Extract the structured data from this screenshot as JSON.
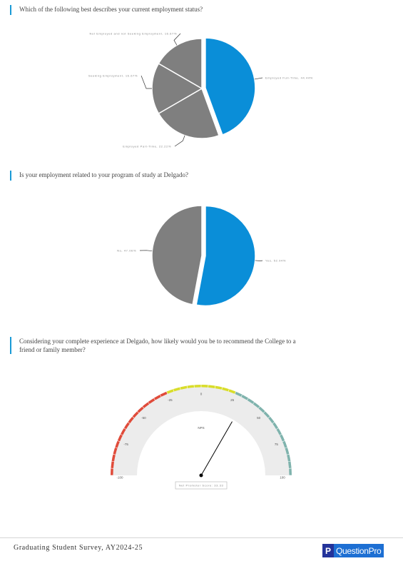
{
  "questions": [
    {
      "text": "Which of the following best describes your current employment status?"
    },
    {
      "text": "Is your employment related to your program of study at Delgado?"
    },
    {
      "text": "Considering your complete experience at Delgado, how likely would you be to recommend the College to a friend or family member?"
    }
  ],
  "colors": {
    "accent": "#0a8ed8",
    "grey": "#7f7f7f",
    "gauge_red": "#e04b3a",
    "gauge_yellow": "#d9dd2a",
    "gauge_teal": "#7fb3ad"
  },
  "chart_data": [
    {
      "type": "pie",
      "slices": [
        {
          "label": "Employed Full-Time, 44.44%",
          "value": 44.44,
          "color": "#0a8ed8",
          "exploded": true
        },
        {
          "label": "Employed Part-Time, 22.22%",
          "value": 22.22,
          "color": "#7f7f7f"
        },
        {
          "label": "Seeking Employment, 16.67%",
          "value": 16.67,
          "color": "#7f7f7f"
        },
        {
          "label": "Not Employed and not Seeking Employment, 16.67%",
          "value": 16.67,
          "color": "#7f7f7f"
        }
      ]
    },
    {
      "type": "pie",
      "slices": [
        {
          "label": "Yes, 52.94%",
          "value": 52.94,
          "color": "#0a8ed8",
          "exploded": true
        },
        {
          "label": "No, 47.06%",
          "value": 47.06,
          "color": "#7f7f7f"
        }
      ]
    },
    {
      "type": "gauge",
      "title": "NPS",
      "min": -100,
      "max": 100,
      "ticks": [
        "-100",
        "-75",
        "-50",
        "-25",
        "0",
        "25",
        "50",
        "75",
        "100"
      ],
      "value": 33.33,
      "value_label": "Net Promoter Score: 33.33"
    }
  ],
  "footer": {
    "title": "Graduating Student Survey, AY2024-25",
    "brand_mark": "P",
    "brand_name": "QuestionPro"
  }
}
